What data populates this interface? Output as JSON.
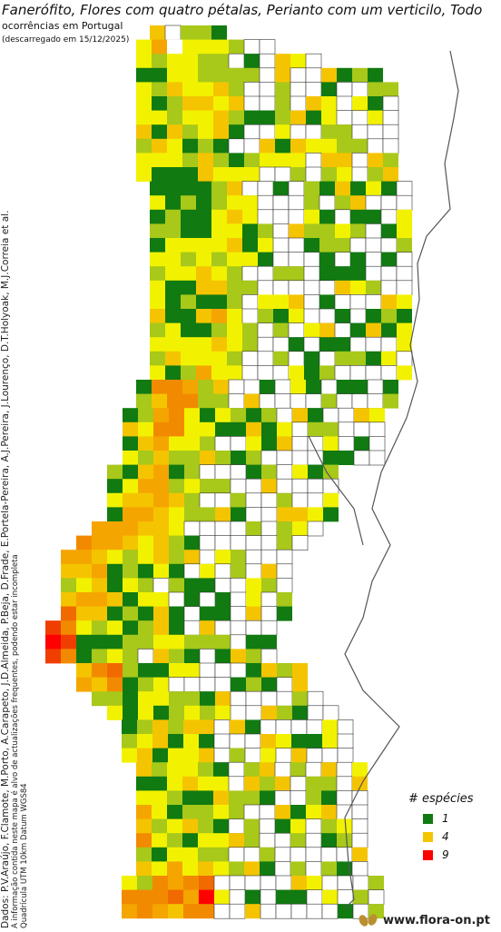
{
  "title": "Fanerófito, Flores com quatro pétalas, Perianto com um verticilo, Todo",
  "subtitle": "ocorrências em Portugal",
  "download_note": "(descarregado em 15/12/2025)",
  "credits": {
    "data_sources": "Dados: P.V.Araújo, F.Clamote, M.Porto, A.Carapeto, J.D.Almeida, P.Beja, D.Frade, E.Portela-Pereira, A.J.Pereira, J.Lourenço, D.T.Holyoak, M.J.Correia et al.",
    "disclaimer": "A informação contida neste mapa é alvo de actualizações frequentes, podendo estar incompleta",
    "grid_note": "Quadrícula UTM 10km Datum WGS84"
  },
  "legend": {
    "title": "# espécies",
    "items": [
      {
        "label": "1",
        "color": "#117a11"
      },
      {
        "label": "4",
        "color": "#f5c400"
      },
      {
        "label": "9",
        "color": "#ff0000"
      }
    ]
  },
  "logo": {
    "text": "www.flora-on.pt",
    "icon": "leaf-logo-icon",
    "color": "#b9902f"
  },
  "colors": {
    "1": "#117a11",
    "2": "#a8c81a",
    "3": "#f2f200",
    "4": "#f5c400",
    "5": "#f5a500",
    "6": "#f28a00",
    "7": "#f06a00",
    "8": "#f03d00",
    "9": "#ff0000",
    "empty": "#ffffff",
    "grid": "#333333"
  },
  "map_rows": [
    "..........eeeeeeeeeeee.................",
    "...........3e5ebe3e3e3e................",
    "............3e.e2e3e3e2e2e.............",
    ".............1e1e3e3e2e2e2e............",
    "..............3e2e4e3e3e4e2e...........",
    "..............3e1e2e4e4e3e.............",
    "..............3e3e2e3e3e4e.............",
    "..............4e1e4e2e3e4e.............",
    "..............2e4e3e1e2e1e.............",
    "..............3e3e3e2e4e2e.............",
    "..............3e1e1e1e4e3e3e...........",
    "..............1e1e1e1e2e4e.............",
    "..............3e1e2e1e2e3e.............",
    "..............1e2e1e1e3e4e.............",
    "..............2e2e1e1e3e3e.............",
    "..............1e3e3e3e3e4e.............",
    "..............3e3e2e3e2e3e.............",
    "..............2e3e3e4e3e2e.............",
    "..............3e1e1e4e4e2e.............",
    "..............3e1e2e1e1e2e.............",
    "..............4e1e1e4e5e3e.............",
    "..............2e3e1e1e2e3e.............",
    "..............3e3e3e3e4e3e.............",
    "..............2e4e3e3e3e2e.............",
    "..............3e1e2e5e3e3e.............",
    "..............1e6e6e5e2e4e.............",
    "..............2e4e6e6e2e2e.............",
    "..............1e2e5e6e3e1e.............",
    "..............4e3e6e6e3e3e.............",
    "..............1e4e5e3e3e2e.............",
    "..............3e2e4e2e2e4e.............",
    "..............2e1e4e5e1e2e.............",
    "..............1e3e5e5e2e3e.............",
    "..............3e4e4e5e4e2e.............",
    "..............1e5e5e4e3e2e.............",
    "..............5e5e5e4e4e3e.............",
    "..............6e5e5e4e3e4e.............",
    "..............5e5e4e3e2e3e.............",
    "..............4e4e5e1e2e1e.............",
    "..............2e3e4e1e3e2e.............",
    "..............4e5e5e4e1e3e.............",
    "..............7e4e4e1e2e1e.............",
    "..............8e6e3e2e3e1e.............",
    "..............9e8e1e1e1e2e.............",
    "..............8e6e1e2e3e2e.............",
    "..............4e6e7e2e1e1e.............",
    "..............5e4e6e1e2e3e.............",
    "..............2e2e1e3e3e2e.............",
    "..............3e1e3e1e2e3e.............",
    "..............1e2e4e2e4e4e.............",
    "..............2e3e4e1e3e1e.............",
    "..............3e4e1e3e3e4e.............",
    "..............4e2e3e3e2e1e.............",
    "..............1e1e3e4e3e3e.............",
    "..............3e3e2e1e1e4e.............",
    "..............5e3e1e2e2e3e.............",
    "..............4e2e3e4e2e1e.............",
    "..............6e3e2e1e3e3e.............",
    "..............2e1e3e3e2e2e.............",
    "..............4e3e5e3e4e3e.............",
    "..............3e2e6e5e6e7e.............",
    "..............6e6e6e7e5e9e.............",
    "..............5e6e5e4e6e6e............."
  ]
}
